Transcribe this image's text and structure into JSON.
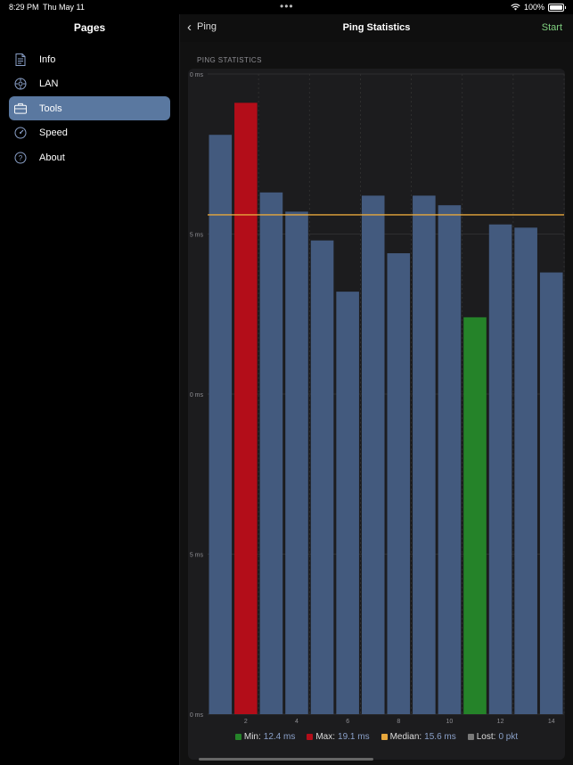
{
  "status_bar": {
    "time": "8:29 PM",
    "date": "Thu May 11",
    "battery": "100%"
  },
  "sidebar": {
    "title": "Pages",
    "items": [
      {
        "label": "Info",
        "icon": "document-icon",
        "selected": false
      },
      {
        "label": "LAN",
        "icon": "network-icon",
        "selected": false
      },
      {
        "label": "Tools",
        "icon": "toolbox-icon",
        "selected": true
      },
      {
        "label": "Speed",
        "icon": "speedometer-icon",
        "selected": false
      },
      {
        "label": "About",
        "icon": "question-icon",
        "selected": false
      }
    ]
  },
  "header": {
    "back_label": "Ping",
    "title": "Ping Statistics",
    "action_label": "Start"
  },
  "section_label": "PING STATISTICS",
  "colors": {
    "bar": "#435a7e",
    "max": "#b30d19",
    "min": "#258329",
    "median": "#e7a73c",
    "lost": "#7a7a7a",
    "accent": "#7fcf7f"
  },
  "chart_data": {
    "type": "bar",
    "x": [
      1,
      2,
      3,
      4,
      5,
      6,
      7,
      8,
      9,
      10,
      11,
      12,
      13,
      14
    ],
    "xticks": [
      "2",
      "4",
      "6",
      "8",
      "10",
      "12",
      "14"
    ],
    "values": [
      18.1,
      19.1,
      16.3,
      15.7,
      14.8,
      13.2,
      16.2,
      14.4,
      16.2,
      15.9,
      12.4,
      15.3,
      15.2,
      13.8
    ],
    "ylim": [
      0,
      20
    ],
    "ytick_labels": [
      "0 ms",
      "5 ms",
      "0 ms",
      "5 ms",
      "0 ms"
    ],
    "median": 15.6,
    "max_index": 1,
    "min_index": 10,
    "legend": [
      {
        "key": "min",
        "label": "Min:",
        "value": "12.4 ms"
      },
      {
        "key": "max",
        "label": "Max:",
        "value": "19.1 ms"
      },
      {
        "key": "median",
        "label": "Median:",
        "value": "15.6 ms"
      },
      {
        "key": "lost",
        "label": "Lost:",
        "value": "0 pkt"
      }
    ]
  }
}
